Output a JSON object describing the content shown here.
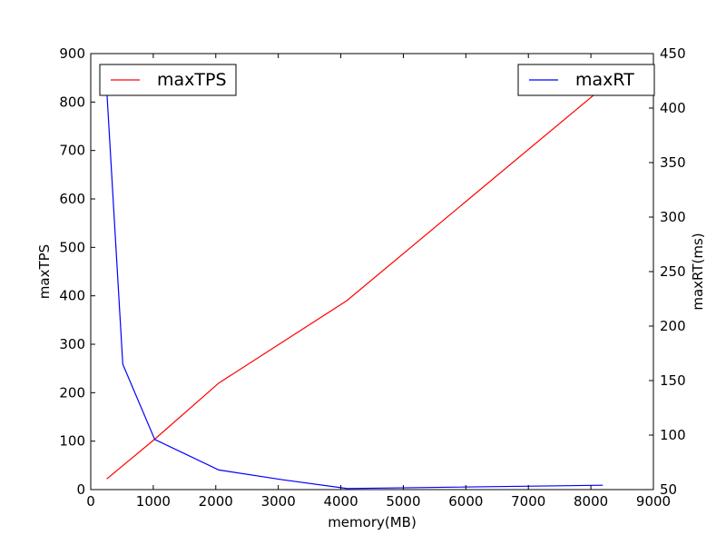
{
  "chart_data": {
    "type": "line",
    "title": "",
    "xlabel": "memory(MB)",
    "ylabel_left": "maxTPS",
    "ylabel_right": "maxRT(ms)",
    "xlim": [
      0,
      9000
    ],
    "ylim_left": [
      0,
      900
    ],
    "ylim_right": [
      50,
      450
    ],
    "xticks": [
      0,
      1000,
      2000,
      3000,
      4000,
      5000,
      6000,
      7000,
      8000,
      9000
    ],
    "yticks_left": [
      0,
      100,
      200,
      300,
      400,
      500,
      600,
      700,
      800,
      900
    ],
    "yticks_right": [
      50,
      100,
      150,
      200,
      250,
      300,
      350,
      400,
      450
    ],
    "grid": false,
    "series": [
      {
        "name": "maxTPS",
        "axis": "left",
        "color": "#ff0000",
        "x": [
          256,
          1024,
          2048,
          4096,
          8192
        ],
        "y": [
          22,
          104,
          220,
          390,
          830
        ]
      },
      {
        "name": "maxRT",
        "axis": "right",
        "color": "#0000ff",
        "x": [
          256,
          512,
          1024,
          2048,
          3072,
          4096,
          8192
        ],
        "y": [
          417,
          165,
          96,
          68,
          59,
          51,
          54
        ]
      }
    ],
    "legends": [
      {
        "series": "maxTPS",
        "placement": "upper-left"
      },
      {
        "series": "maxRT",
        "placement": "upper-right"
      }
    ]
  }
}
